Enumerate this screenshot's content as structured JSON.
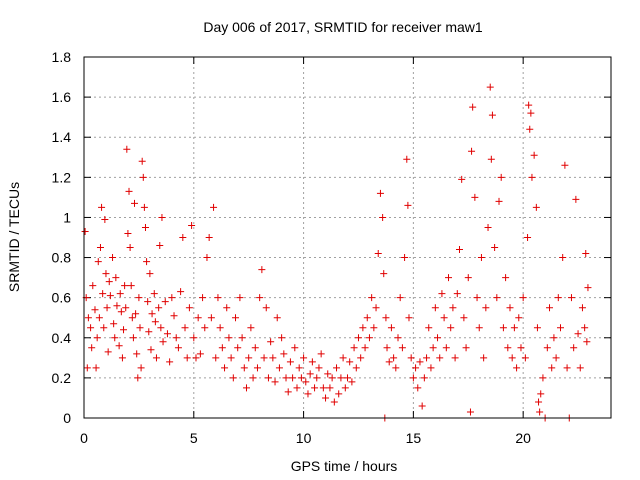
{
  "chart_data": {
    "type": "scatter",
    "title": "Day 006 of 2017, SRMTID for receiver maw1",
    "xlabel": "GPS time / hours",
    "ylabel": "SRMTID / TECUs",
    "xlim": [
      0,
      24
    ],
    "ylim": [
      0,
      1.8
    ],
    "xticks": [
      0,
      5,
      10,
      15,
      20
    ],
    "xtick_labels": [
      "0",
      "5",
      "10",
      "15",
      "20"
    ],
    "yticks": [
      0,
      0.2,
      0.4,
      0.6,
      0.8,
      1,
      1.2,
      1.4,
      1.6,
      1.8
    ],
    "ytick_labels": [
      "0",
      "0.2",
      "0.4",
      "0.6",
      "0.8",
      "1",
      "1.2",
      "1.4",
      "1.6",
      "1.8"
    ],
    "grid": true,
    "marker": "+",
    "color": "#e00000",
    "series": [
      {
        "name": "maw1",
        "points": [
          [
            0.05,
            0.93
          ],
          [
            0.1,
            0.6
          ],
          [
            0.15,
            0.25
          ],
          [
            0.2,
            0.5
          ],
          [
            0.3,
            0.45
          ],
          [
            0.35,
            0.35
          ],
          [
            0.4,
            0.66
          ],
          [
            0.5,
            0.54
          ],
          [
            0.55,
            0.25
          ],
          [
            0.6,
            0.4
          ],
          [
            0.65,
            0.78
          ],
          [
            0.7,
            0.5
          ],
          [
            0.75,
            0.85
          ],
          [
            0.8,
            1.05
          ],
          [
            0.85,
            0.62
          ],
          [
            0.9,
            0.45
          ],
          [
            0.95,
            0.99
          ],
          [
            1.0,
            0.72
          ],
          [
            1.05,
            0.55
          ],
          [
            1.1,
            0.33
          ],
          [
            1.15,
            0.68
          ],
          [
            1.2,
            0.61
          ],
          [
            1.3,
            0.8
          ],
          [
            1.35,
            0.47
          ],
          [
            1.4,
            0.4
          ],
          [
            1.45,
            0.7
          ],
          [
            1.5,
            0.56
          ],
          [
            1.6,
            0.36
          ],
          [
            1.65,
            0.62
          ],
          [
            1.7,
            0.53
          ],
          [
            1.75,
            0.3
          ],
          [
            1.8,
            0.44
          ],
          [
            1.85,
            0.66
          ],
          [
            1.9,
            0.55
          ],
          [
            1.95,
            1.34
          ],
          [
            2.0,
            0.92
          ],
          [
            2.05,
            1.13
          ],
          [
            2.1,
            0.85
          ],
          [
            2.15,
            0.66
          ],
          [
            2.2,
            0.5
          ],
          [
            2.25,
            0.4
          ],
          [
            2.3,
            1.07
          ],
          [
            2.35,
            0.52
          ],
          [
            2.4,
            0.32
          ],
          [
            2.45,
            0.2
          ],
          [
            2.5,
            0.6
          ],
          [
            2.55,
            0.45
          ],
          [
            2.6,
            0.25
          ],
          [
            2.65,
            1.28
          ],
          [
            2.7,
            1.2
          ],
          [
            2.75,
            1.05
          ],
          [
            2.8,
            0.95
          ],
          [
            2.85,
            0.78
          ],
          [
            2.9,
            0.58
          ],
          [
            2.95,
            0.43
          ],
          [
            3.0,
            0.72
          ],
          [
            3.05,
            0.34
          ],
          [
            3.1,
            0.52
          ],
          [
            3.2,
            0.62
          ],
          [
            3.25,
            0.48
          ],
          [
            3.3,
            0.3
          ],
          [
            3.4,
            0.55
          ],
          [
            3.45,
            0.86
          ],
          [
            3.5,
            0.45
          ],
          [
            3.55,
            1.0
          ],
          [
            3.6,
            0.38
          ],
          [
            3.7,
            0.58
          ],
          [
            3.8,
            0.42
          ],
          [
            3.9,
            0.28
          ],
          [
            4.0,
            0.6
          ],
          [
            4.1,
            0.51
          ],
          [
            4.2,
            0.4
          ],
          [
            4.3,
            0.35
          ],
          [
            4.4,
            0.63
          ],
          [
            4.5,
            0.9
          ],
          [
            4.6,
            0.45
          ],
          [
            4.7,
            0.3
          ],
          [
            4.8,
            0.55
          ],
          [
            4.9,
            0.96
          ],
          [
            5.0,
            0.4
          ],
          [
            5.1,
            0.3
          ],
          [
            5.2,
            0.5
          ],
          [
            5.3,
            0.32
          ],
          [
            5.4,
            0.6
          ],
          [
            5.5,
            0.45
          ],
          [
            5.6,
            0.8
          ],
          [
            5.7,
            0.9
          ],
          [
            5.8,
            0.5
          ],
          [
            5.9,
            1.05
          ],
          [
            6.0,
            0.3
          ],
          [
            6.1,
            0.6
          ],
          [
            6.2,
            0.45
          ],
          [
            6.3,
            0.35
          ],
          [
            6.4,
            0.25
          ],
          [
            6.5,
            0.55
          ],
          [
            6.6,
            0.4
          ],
          [
            6.7,
            0.3
          ],
          [
            6.8,
            0.2
          ],
          [
            6.9,
            0.5
          ],
          [
            7.0,
            0.35
          ],
          [
            7.1,
            0.6
          ],
          [
            7.2,
            0.4
          ],
          [
            7.3,
            0.25
          ],
          [
            7.4,
            0.15
          ],
          [
            7.5,
            0.3
          ],
          [
            7.6,
            0.45
          ],
          [
            7.7,
            0.2
          ],
          [
            7.8,
            0.35
          ],
          [
            7.9,
            0.25
          ],
          [
            8.0,
            0.6
          ],
          [
            8.1,
            0.74
          ],
          [
            8.2,
            0.3
          ],
          [
            8.3,
            0.55
          ],
          [
            8.4,
            0.2
          ],
          [
            8.5,
            0.38
          ],
          [
            8.6,
            0.3
          ],
          [
            8.7,
            0.18
          ],
          [
            8.8,
            0.5
          ],
          [
            8.9,
            0.25
          ],
          [
            9.0,
            0.4
          ],
          [
            9.1,
            0.32
          ],
          [
            9.2,
            0.2
          ],
          [
            9.3,
            0.13
          ],
          [
            9.4,
            0.28
          ],
          [
            9.5,
            0.2
          ],
          [
            9.6,
            0.35
          ],
          [
            9.7,
            0.15
          ],
          [
            9.8,
            0.25
          ],
          [
            9.9,
            0.2
          ],
          [
            10.0,
            0.3
          ],
          [
            10.1,
            0.18
          ],
          [
            10.2,
            0.12
          ],
          [
            10.3,
            0.22
          ],
          [
            10.4,
            0.28
          ],
          [
            10.5,
            0.15
          ],
          [
            10.6,
            0.2
          ],
          [
            10.7,
            0.25
          ],
          [
            10.8,
            0.32
          ],
          [
            10.9,
            0.15
          ],
          [
            11.0,
            0.1
          ],
          [
            11.1,
            0.22
          ],
          [
            11.2,
            0.15
          ],
          [
            11.3,
            0.2
          ],
          [
            11.4,
            0.08
          ],
          [
            11.5,
            0.25
          ],
          [
            11.6,
            0.12
          ],
          [
            11.7,
            0.2
          ],
          [
            11.8,
            0.3
          ],
          [
            11.9,
            0.15
          ],
          [
            12.0,
            0.2
          ],
          [
            12.1,
            0.28
          ],
          [
            12.2,
            0.18
          ],
          [
            12.3,
            0.35
          ],
          [
            12.4,
            0.25
          ],
          [
            12.5,
            0.4
          ],
          [
            12.6,
            0.3
          ],
          [
            12.7,
            0.45
          ],
          [
            12.8,
            0.35
          ],
          [
            12.9,
            0.5
          ],
          [
            13.0,
            0.4
          ],
          [
            13.1,
            0.6
          ],
          [
            13.2,
            0.45
          ],
          [
            13.3,
            0.55
          ],
          [
            13.4,
            0.82
          ],
          [
            13.5,
            1.12
          ],
          [
            13.6,
            1.0
          ],
          [
            13.65,
            0.72
          ],
          [
            13.7,
            0.0
          ],
          [
            13.75,
            0.5
          ],
          [
            13.8,
            0.35
          ],
          [
            13.9,
            0.28
          ],
          [
            14.0,
            0.45
          ],
          [
            14.1,
            0.3
          ],
          [
            14.2,
            0.25
          ],
          [
            14.3,
            0.4
          ],
          [
            14.4,
            0.6
          ],
          [
            14.5,
            0.35
          ],
          [
            14.6,
            0.8
          ],
          [
            14.7,
            1.29
          ],
          [
            14.75,
            1.06
          ],
          [
            14.8,
            0.5
          ],
          [
            14.9,
            0.3
          ],
          [
            15.0,
            0.2
          ],
          [
            15.1,
            0.25
          ],
          [
            15.2,
            0.15
          ],
          [
            15.3,
            0.28
          ],
          [
            15.4,
            0.06
          ],
          [
            15.5,
            0.2
          ],
          [
            15.6,
            0.3
          ],
          [
            15.7,
            0.45
          ],
          [
            15.8,
            0.25
          ],
          [
            15.9,
            0.35
          ],
          [
            16.0,
            0.55
          ],
          [
            16.1,
            0.4
          ],
          [
            16.2,
            0.3
          ],
          [
            16.3,
            0.62
          ],
          [
            16.4,
            0.5
          ],
          [
            16.5,
            0.35
          ],
          [
            16.6,
            0.7
          ],
          [
            16.7,
            0.45
          ],
          [
            16.8,
            0.55
          ],
          [
            16.9,
            0.3
          ],
          [
            17.0,
            0.62
          ],
          [
            17.1,
            0.84
          ],
          [
            17.2,
            1.19
          ],
          [
            17.3,
            0.5
          ],
          [
            17.4,
            0.35
          ],
          [
            17.5,
            0.7
          ],
          [
            17.6,
            0.03
          ],
          [
            17.65,
            1.33
          ],
          [
            17.7,
            1.55
          ],
          [
            17.8,
            1.1
          ],
          [
            17.9,
            0.6
          ],
          [
            18.0,
            0.45
          ],
          [
            18.1,
            0.8
          ],
          [
            18.2,
            0.3
          ],
          [
            18.3,
            0.55
          ],
          [
            18.4,
            0.95
          ],
          [
            18.5,
            1.65
          ],
          [
            18.55,
            1.29
          ],
          [
            18.6,
            1.51
          ],
          [
            18.7,
            0.85
          ],
          [
            18.8,
            0.6
          ],
          [
            18.9,
            1.08
          ],
          [
            19.0,
            1.2
          ],
          [
            19.1,
            0.45
          ],
          [
            19.2,
            0.7
          ],
          [
            19.3,
            0.35
          ],
          [
            19.4,
            0.55
          ],
          [
            19.5,
            0.3
          ],
          [
            19.6,
            0.45
          ],
          [
            19.7,
            0.25
          ],
          [
            19.8,
            0.5
          ],
          [
            19.9,
            0.35
          ],
          [
            20.0,
            0.6
          ],
          [
            20.1,
            0.3
          ],
          [
            20.2,
            0.9
          ],
          [
            20.25,
            1.56
          ],
          [
            20.3,
            1.44
          ],
          [
            20.35,
            1.52
          ],
          [
            20.4,
            1.2
          ],
          [
            20.5,
            1.31
          ],
          [
            20.6,
            1.05
          ],
          [
            20.65,
            0.45
          ],
          [
            20.7,
            0.08
          ],
          [
            20.75,
            0.03
          ],
          [
            20.8,
            0.12
          ],
          [
            20.9,
            0.2
          ],
          [
            21.0,
            0.0
          ],
          [
            21.1,
            0.35
          ],
          [
            21.2,
            0.55
          ],
          [
            21.3,
            0.25
          ],
          [
            21.4,
            0.4
          ],
          [
            21.5,
            0.3
          ],
          [
            21.6,
            0.6
          ],
          [
            21.7,
            0.45
          ],
          [
            21.8,
            0.8
          ],
          [
            21.9,
            1.26
          ],
          [
            22.0,
            0.25
          ],
          [
            22.1,
            0.0
          ],
          [
            22.2,
            0.6
          ],
          [
            22.3,
            0.35
          ],
          [
            22.4,
            1.09
          ],
          [
            22.5,
            0.42
          ],
          [
            22.6,
            0.25
          ],
          [
            22.7,
            0.55
          ],
          [
            22.8,
            0.45
          ],
          [
            22.85,
            0.82
          ],
          [
            22.9,
            0.38
          ],
          [
            22.95,
            0.65
          ]
        ]
      }
    ]
  }
}
